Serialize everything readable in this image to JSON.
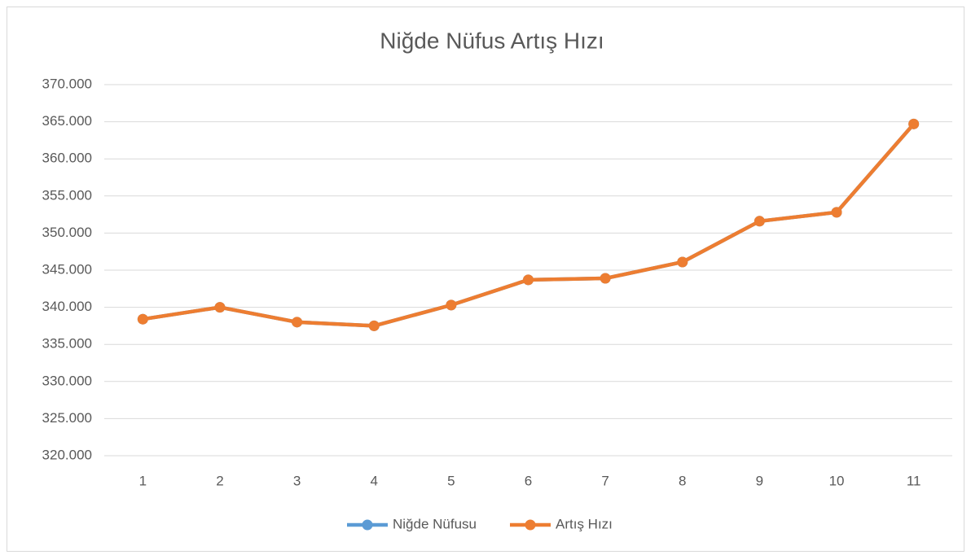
{
  "chart_data": {
    "type": "line",
    "title": "Niğde Nüfus Artış Hızı",
    "categories": [
      "1",
      "2",
      "3",
      "4",
      "5",
      "6",
      "7",
      "8",
      "9",
      "10",
      "11"
    ],
    "series": [
      {
        "name": "Niğde Nüfusu",
        "color": "#5b9bd5",
        "values": [
          338400,
          340000,
          338000,
          337500,
          340300,
          343700,
          343900,
          346100,
          351600,
          352800,
          364700
        ]
      },
      {
        "name": "Artış Hızı",
        "color": "#ed7d31",
        "values": [
          338400,
          340000,
          338000,
          337500,
          340300,
          343700,
          343900,
          346100,
          351600,
          352800,
          364700
        ]
      }
    ],
    "ylim": [
      320000,
      370000
    ],
    "yticks": [
      {
        "value": 320000,
        "label": "320.000"
      },
      {
        "value": 325000,
        "label": "325.000"
      },
      {
        "value": 330000,
        "label": "330.000"
      },
      {
        "value": 335000,
        "label": "335.000"
      },
      {
        "value": 340000,
        "label": "340.000"
      },
      {
        "value": 345000,
        "label": "345.000"
      },
      {
        "value": 350000,
        "label": "350.000"
      },
      {
        "value": 355000,
        "label": "355.000"
      },
      {
        "value": 360000,
        "label": "360.000"
      },
      {
        "value": 365000,
        "label": "365.000"
      },
      {
        "value": 370000,
        "label": "370.000"
      }
    ],
    "grid": true,
    "legend": "bottom"
  }
}
